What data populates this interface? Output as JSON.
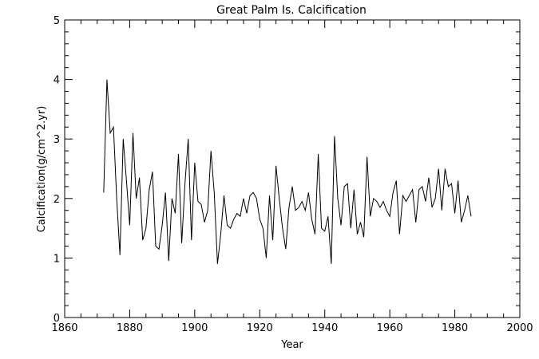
{
  "chart_data": {
    "type": "line",
    "title": "Great Palm Is. Calcification",
    "xlabel": "Year",
    "ylabel": "Calcification(g/cm^2.yr)",
    "xlim": [
      1860,
      2000
    ],
    "ylim": [
      0,
      5
    ],
    "x_ticks": [
      "1860",
      "1880",
      "1900",
      "1920",
      "1940",
      "1960",
      "1980",
      "2000"
    ],
    "y_ticks": [
      "0",
      "1",
      "2",
      "3",
      "4",
      "5"
    ],
    "grid": false,
    "series": [
      {
        "x": [
          1872,
          1873,
          1874,
          1875,
          1876,
          1877,
          1878,
          1879,
          1880,
          1881,
          1882,
          1883,
          1884,
          1885,
          1886,
          1887,
          1888,
          1889,
          1890,
          1891,
          1892,
          1893,
          1894,
          1895,
          1896,
          1897,
          1898,
          1899,
          1900,
          1901,
          1902,
          1903,
          1904,
          1905,
          1906,
          1907,
          1908,
          1909,
          1910,
          1911,
          1912,
          1913,
          1914,
          1915,
          1916,
          1917,
          1918,
          1919,
          1920,
          1921,
          1922,
          1923,
          1924,
          1925,
          1926,
          1927,
          1928,
          1929,
          1930,
          1931,
          1932,
          1933,
          1934,
          1935,
          1936,
          1937,
          1938,
          1939,
          1940,
          1941,
          1942,
          1943,
          1944,
          1945,
          1946,
          1947,
          1948,
          1949,
          1950,
          1951,
          1952,
          1953,
          1954,
          1955,
          1956,
          1957,
          1958,
          1959,
          1960,
          1961,
          1962,
          1963,
          1964,
          1965,
          1966,
          1967,
          1968,
          1969,
          1970,
          1971,
          1972,
          1973,
          1974,
          1975,
          1976,
          1977,
          1978,
          1979,
          1980,
          1981,
          1982,
          1983,
          1984,
          1985
        ],
        "y": [
          2.1,
          4.0,
          3.1,
          3.2,
          2.0,
          1.05,
          3.0,
          2.3,
          1.55,
          3.1,
          2.0,
          2.35,
          1.3,
          1.5,
          2.15,
          2.45,
          1.2,
          1.15,
          1.55,
          2.1,
          0.95,
          2.0,
          1.75,
          2.75,
          1.25,
          2.25,
          3.0,
          1.3,
          2.6,
          1.95,
          1.9,
          1.6,
          1.8,
          2.8,
          2.1,
          0.9,
          1.4,
          2.05,
          1.55,
          1.5,
          1.65,
          1.75,
          1.7,
          2.0,
          1.75,
          2.05,
          2.1,
          2.0,
          1.65,
          1.5,
          1.0,
          2.05,
          1.3,
          2.55,
          2.0,
          1.5,
          1.15,
          1.85,
          2.2,
          1.8,
          1.85,
          1.95,
          1.8,
          2.1,
          1.65,
          1.4,
          2.75,
          1.5,
          1.45,
          1.7,
          0.9,
          3.05,
          2.0,
          1.55,
          2.2,
          2.25,
          1.5,
          2.15,
          1.4,
          1.6,
          1.35,
          2.7,
          1.7,
          2.0,
          1.95,
          1.85,
          1.95,
          1.8,
          1.7,
          2.1,
          2.3,
          1.4,
          2.05,
          1.95,
          2.05,
          2.15,
          1.6,
          2.15,
          2.2,
          1.95,
          2.35,
          1.85,
          2.0,
          2.5,
          1.8,
          2.5,
          2.2,
          2.25,
          1.75,
          2.3,
          1.6,
          1.8,
          2.05,
          1.7
        ]
      }
    ]
  }
}
